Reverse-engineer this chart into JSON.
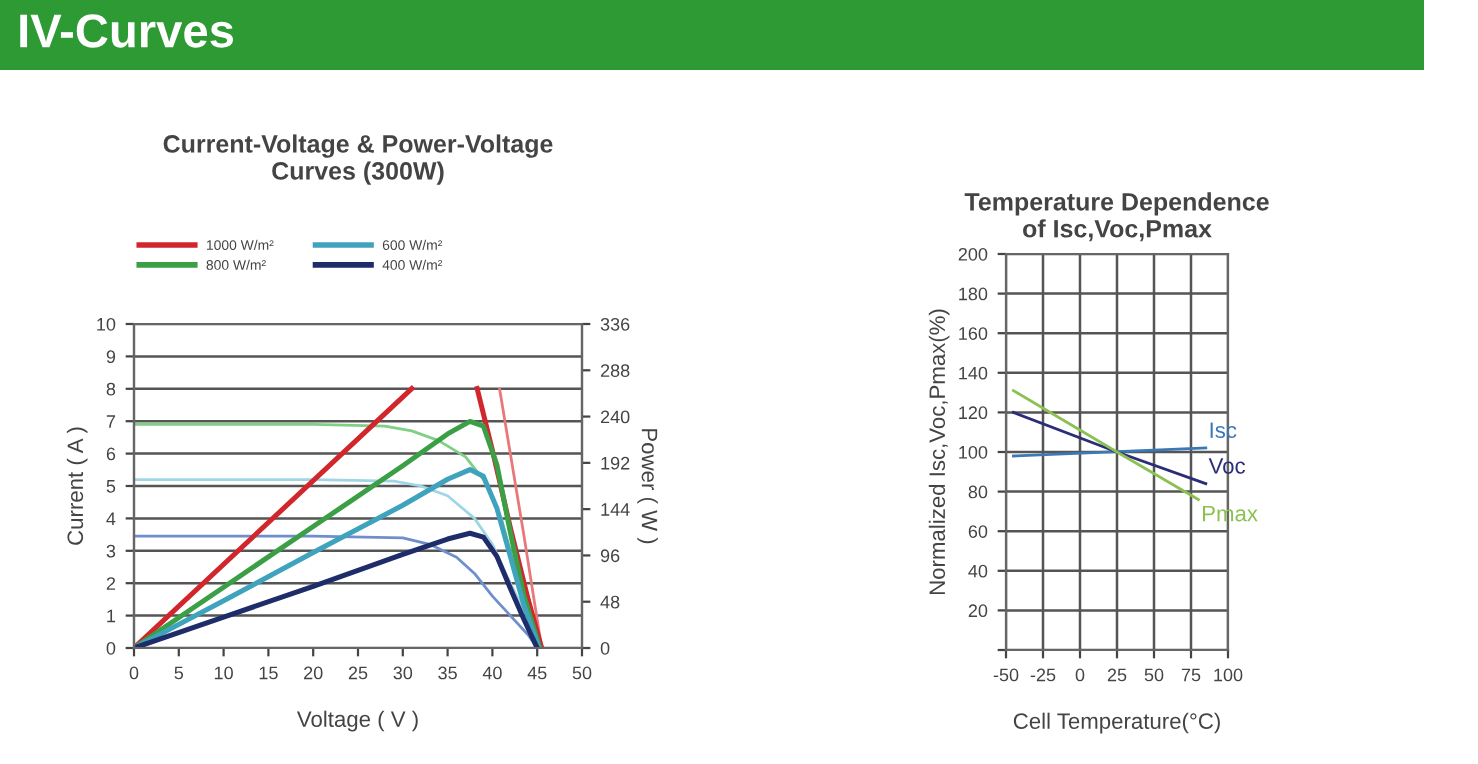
{
  "chart_data": [
    {
      "type": "other",
      "title": "IV-Curves"
    },
    {
      "type": "line",
      "title": "Current-Voltage & Power-Voltage\nCurves (300W)",
      "xlabel": "Voltage ( V )",
      "ylabel": "Current ( A )",
      "y2label": "Power ( W )",
      "xlim": [
        0,
        50
      ],
      "xticks": [
        0,
        5,
        10,
        15,
        20,
        25,
        30,
        35,
        40,
        45,
        50
      ],
      "ylim": [
        0,
        10
      ],
      "yticks": [
        0,
        1,
        2,
        3,
        4,
        5,
        6,
        7,
        8,
        9,
        10
      ],
      "y2lim": [
        0,
        336
      ],
      "y2ticks": [
        0,
        48,
        96,
        144,
        192,
        240,
        288,
        336
      ],
      "grid": "y",
      "legend": "top",
      "series": [
        {
          "name": "1000 W/m²",
          "color": "#d0262c",
          "axis": "y2",
          "x": [
            0,
            31,
            32,
            38.3,
            40,
            42,
            44,
            45.5
          ],
          "values": [
            0,
            269,
            null,
            269,
            205,
            125,
            50,
            0
          ]
        },
        {
          "color": "#e8787a",
          "axis": "y",
          "x": [
            40.8,
            42,
            43.5,
            45.5
          ],
          "values": [
            8,
            6,
            3.5,
            0
          ]
        },
        {
          "name": "800 W/m²",
          "color": "#3a9f45",
          "axis": "y2",
          "x": [
            0,
            10,
            20,
            30,
            35,
            37.5,
            39,
            40.5,
            42,
            43.5,
            45.3
          ],
          "values": [
            0,
            63,
            126,
            189,
            222,
            235,
            230,
            190,
            120,
            55,
            0
          ]
        },
        {
          "color": "#7fcf84",
          "axis": "y",
          "x": [
            0,
            10,
            20,
            28,
            31,
            34,
            37,
            39,
            41,
            43,
            45.3
          ],
          "values": [
            6.9,
            6.9,
            6.9,
            6.85,
            6.7,
            6.4,
            5.9,
            5.2,
            4.0,
            2.0,
            0
          ]
        },
        {
          "name": "600 W/m²",
          "color": "#3fa3bd",
          "axis": "y2",
          "x": [
            0,
            10,
            20,
            30,
            35,
            37.5,
            39,
            40.5,
            42,
            43.5,
            45.2
          ],
          "values": [
            0,
            49,
            99,
            148,
            175,
            185,
            178,
            145,
            95,
            45,
            0
          ]
        },
        {
          "color": "#9ed6e6",
          "axis": "y",
          "x": [
            0,
            10,
            20,
            29,
            32,
            35,
            38,
            40,
            42,
            44,
            45.2
          ],
          "values": [
            5.2,
            5.2,
            5.2,
            5.15,
            5.0,
            4.7,
            4.0,
            3.2,
            2.0,
            0.9,
            0
          ]
        },
        {
          "name": "400 W/m²",
          "color": "#1f2c6a",
          "axis": "y2",
          "x": [
            0,
            10,
            20,
            30,
            35,
            37.5,
            39,
            40.5,
            42,
            43.5,
            45
          ],
          "values": [
            0,
            32,
            64,
            97,
            113,
            119,
            115,
            95,
            62,
            30,
            0
          ]
        },
        {
          "color": "#6f8fcc",
          "axis": "y",
          "x": [
            0,
            10,
            20,
            30,
            33,
            36,
            38,
            40,
            42,
            44,
            45
          ],
          "values": [
            3.45,
            3.45,
            3.45,
            3.4,
            3.2,
            2.8,
            2.3,
            1.6,
            1.0,
            0.4,
            0
          ]
        }
      ]
    },
    {
      "type": "line",
      "title": "Temperature Dependence\nof Isc,Voc,Pmax",
      "xlabel": "Cell Temperature(°C)",
      "ylabel": "Normalized Isc,Voc,Pmax(%)",
      "xlim": [
        -50,
        100
      ],
      "xticks": [
        -50,
        -25,
        0,
        25,
        50,
        75,
        100
      ],
      "ylim": [
        0,
        200
      ],
      "yticks": [
        {
          "value": 0,
          "label": null
        },
        20,
        40,
        60,
        80,
        100,
        120,
        140,
        160,
        180,
        200
      ],
      "grid": true,
      "legend": false,
      "series": [
        {
          "name": "Isc",
          "color": "#3b78b5",
          "x": [
            -45,
            85
          ],
          "values": [
            98,
            102
          ]
        },
        {
          "name": "Voc",
          "color": "#2b2d78",
          "x": [
            -45,
            25,
            85
          ],
          "values": [
            120,
            100,
            84
          ]
        },
        {
          "name": "Pmax",
          "color": "#8cc152",
          "x": [
            -45,
            25,
            80
          ],
          "values": [
            131,
            100,
            76
          ]
        }
      ]
    }
  ]
}
